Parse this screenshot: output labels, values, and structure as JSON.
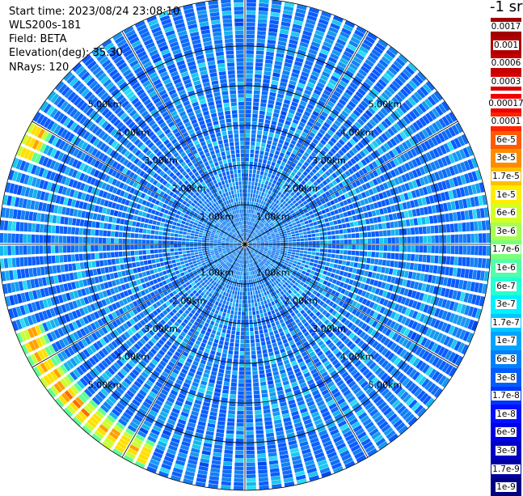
{
  "header": {
    "start_time": "Start time: 2023/08/24 23:08:10",
    "instrument": "WLS200s-181",
    "field": "Field: BETA",
    "elevation": "Elevation(deg): 35.30",
    "nrays": "NRays: 120"
  },
  "colorbar": {
    "title": "-1 sr",
    "top_block": [
      {
        "label": "0.0017",
        "color": "#a00000"
      },
      {
        "label": "0.001",
        "color": "#b00000"
      },
      {
        "label": "0.0006",
        "color": "#c40000"
      },
      {
        "label": "0.0003",
        "color": "#d80000"
      }
    ],
    "main_block": [
      {
        "label": "0.00017",
        "color": "#ee0000"
      },
      {
        "label": "0.0001",
        "color": "#ff2200"
      },
      {
        "label": "6e-5",
        "color": "#ff5a00"
      },
      {
        "label": "3e-5",
        "color": "#ff8c00"
      },
      {
        "label": "1.7e-5",
        "color": "#ffbe00"
      },
      {
        "label": "1e-5",
        "color": "#ffee00"
      },
      {
        "label": "6e-6",
        "color": "#d4ff22"
      },
      {
        "label": "3e-6",
        "color": "#a6ff52"
      },
      {
        "label": "1.7e-6",
        "color": "#7cff7a"
      },
      {
        "label": "1e-6",
        "color": "#50ffa8"
      },
      {
        "label": "6e-7",
        "color": "#26ffd2"
      },
      {
        "label": "3e-7",
        "color": "#00f0ff"
      },
      {
        "label": "1.7e-7",
        "color": "#00c8ff"
      },
      {
        "label": "1e-7",
        "color": "#00a4ff"
      },
      {
        "label": "6e-8",
        "color": "#0080ff"
      },
      {
        "label": "3e-8",
        "color": "#005cff"
      },
      {
        "label": "1.7e-8",
        "color": "#0034ff"
      },
      {
        "label": "1e-8",
        "color": "#0010ff"
      },
      {
        "label": "6e-9",
        "color": "#0000e6"
      },
      {
        "label": "3e-9",
        "color": "#0000c4"
      },
      {
        "label": "1.7e-9",
        "color": "#0000a0"
      },
      {
        "label": "1e-9",
        "color": "#000080"
      }
    ]
  },
  "chart_data": {
    "type": "heatmap",
    "projection": "polar PPI scan",
    "field": "BETA",
    "nrays": 120,
    "range_unit": "km",
    "range_rings": [
      1.0,
      2.0,
      3.0,
      4.0,
      5.0
    ],
    "ring_labels": [
      "1.00km",
      "2.00km",
      "3.00km",
      "4.00km",
      "5.00km"
    ],
    "radial_lines_deg": [
      0,
      30,
      60,
      90,
      120,
      150,
      180,
      210,
      240,
      270,
      300,
      330
    ],
    "max_range_km": 6.2,
    "scale": "log",
    "value_range": [
      1e-09,
      0.0017
    ],
    "dominant_level": "1e-7 to 6e-7",
    "features": [
      {
        "azimuth_range_deg": [
          205,
          250
        ],
        "range_km": [
          5.5,
          6.2
        ],
        "level": "1.7e-5 to 1e-4"
      },
      {
        "azimuth_range_deg": [
          290,
          300
        ],
        "range_km": [
          5.6,
          6.2
        ],
        "level": "3e-5 to 1.7e-4"
      }
    ]
  }
}
